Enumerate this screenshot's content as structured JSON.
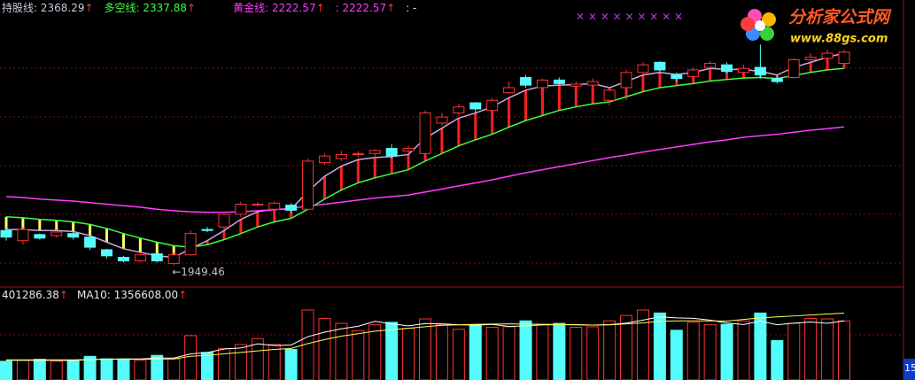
{
  "chart_data": {
    "type": "candlestick",
    "legend": [
      {
        "text": "持股线: 2368.29",
        "arrow": "↑",
        "color": "#c8c8d8"
      },
      {
        "text": "多空线: 2337.88",
        "arrow": "↑",
        "color": "#3cff3c"
      },
      {
        "text": "黄金线: 2222.57",
        "arrow": "↑",
        "color": "#ff3cff"
      },
      {
        "text": ": 2222.57",
        "arrow": "↑",
        "color": "#ff3cff"
      },
      {
        "text": ": -",
        "color": "#e0e0e0"
      }
    ],
    "top_markers": "×  ×  ×  ×  ×  ×  ×  ×  ×",
    "low_label": "←1949.46",
    "ylim": [
      1910,
      2473
    ],
    "open": [
      2018,
      1998,
      2010,
      2008,
      2012,
      2005,
      1980,
      1965,
      1958,
      1972,
      1953,
      1970,
      2020,
      2025,
      2050,
      2068,
      2060,
      2068,
      2060,
      2152,
      2160,
      2168,
      2170,
      2180,
      2175,
      2170,
      2230,
      2250,
      2270,
      2255,
      2290,
      2320,
      2300,
      2315,
      2303,
      2305,
      2275,
      2300,
      2330,
      2350,
      2325,
      2322,
      2340,
      2345,
      2330,
      2340,
      2318,
      2320,
      2355,
      2358,
      2348
    ],
    "high": [
      2025,
      2025,
      2012,
      2020,
      2016,
      2008,
      1982,
      1968,
      1972,
      1975,
      1975,
      2018,
      2025,
      2052,
      2075,
      2074,
      2075,
      2072,
      2160,
      2170,
      2175,
      2175,
      2178,
      2188,
      2185,
      2255,
      2250,
      2268,
      2272,
      2280,
      2312,
      2325,
      2318,
      2320,
      2312,
      2318,
      2300,
      2335,
      2350,
      2352,
      2330,
      2340,
      2352,
      2350,
      2345,
      2385,
      2325,
      2358,
      2368,
      2375,
      2375
    ],
    "low": [
      1998,
      1990,
      2000,
      2004,
      2000,
      1980,
      1963,
      1955,
      1955,
      1955,
      1949.46,
      1968,
      2015,
      2020,
      2045,
      2065,
      2058,
      2052,
      2058,
      2148,
      2155,
      2162,
      2158,
      2160,
      2168,
      2168,
      2225,
      2245,
      2250,
      2250,
      2288,
      2300,
      2296,
      2305,
      2300,
      2300,
      2265,
      2275,
      2325,
      2330,
      2312,
      2318,
      2335,
      2328,
      2325,
      2318,
      2308,
      2318,
      2350,
      2352,
      2345
    ],
    "close": [
      2005,
      2020,
      2003,
      2015,
      2005,
      1985,
      1968,
      1958,
      1970,
      1958,
      1970,
      2012,
      2018,
      2050,
      2070,
      2070,
      2072,
      2058,
      2155,
      2165,
      2168,
      2170,
      2176,
      2165,
      2180,
      2250,
      2242,
      2262,
      2258,
      2275,
      2300,
      2305,
      2315,
      2308,
      2307,
      2312,
      2295,
      2330,
      2345,
      2335,
      2318,
      2335,
      2348,
      2332,
      2338,
      2325,
      2312,
      2355,
      2360,
      2368,
      2370
    ],
    "up_color": "#ff3232",
    "down_color": "#54fcfc",
    "lines": [
      {
        "color": "#c8a8e0",
        "values": [
          2020,
          2020,
          2018,
          2018,
          2016,
          2008,
          1995,
          1982,
          1975,
          1968,
          1965,
          1982,
          1998,
          2018,
          2040,
          2055,
          2060,
          2060,
          2095,
          2125,
          2145,
          2158,
          2162,
          2164,
          2168,
          2200,
          2220,
          2240,
          2250,
          2262,
          2280,
          2295,
          2303,
          2305,
          2306,
          2308,
          2300,
          2312,
          2325,
          2330,
          2326,
          2330,
          2338,
          2336,
          2336,
          2332,
          2325,
          2340,
          2350,
          2360,
          2368.29
        ]
      },
      {
        "color": "#3cff3c",
        "values": [
          2045,
          2043,
          2040,
          2038,
          2035,
          2030,
          2022,
          2012,
          2003,
          1995,
          1988,
          1985,
          1990,
          2000,
          2012,
          2025,
          2035,
          2042,
          2060,
          2080,
          2098,
          2112,
          2122,
          2130,
          2138,
          2155,
          2170,
          2185,
          2197,
          2208,
          2222,
          2235,
          2245,
          2255,
          2262,
          2268,
          2272,
          2282,
          2292,
          2300,
          2304,
          2308,
          2313,
          2316,
          2319,
          2320,
          2318,
          2324,
          2330,
          2335,
          2337.88
        ]
      },
      {
        "color": "#ff3cff",
        "values": [
          2085,
          2083,
          2080,
          2078,
          2076,
          2073,
          2070,
          2067,
          2064,
          2060,
          2057,
          2055,
          2054,
          2054,
          2055,
          2057,
          2059,
          2062,
          2066,
          2070,
          2074,
          2078,
          2082,
          2085,
          2088,
          2094,
          2100,
          2106,
          2112,
          2118,
          2125,
          2132,
          2138,
          2144,
          2150,
          2156,
          2162,
          2167,
          2173,
          2178,
          2183,
          2188,
          2193,
          2197,
          2202,
          2205,
          2208,
          2212,
          2216,
          2219,
          2222.57
        ]
      }
    ],
    "stick_up_color": "#ff1e1e",
    "stick_down_color": "#ffff64",
    "volume": {
      "labels": [
        {
          "text": "401286.38",
          "arrow": "↑"
        },
        {
          "text": "MA10: 1356608.00",
          "arrow": "↑"
        }
      ],
      "ylim": [
        0,
        1600000
      ],
      "values": [
        380000,
        400000,
        420000,
        380000,
        400000,
        480000,
        430000,
        420000,
        400000,
        500000,
        430000,
        900000,
        560000,
        640000,
        720000,
        840000,
        720000,
        620000,
        1420000,
        1250000,
        1150000,
        1000000,
        1120000,
        1170000,
        1050000,
        1240000,
        1120000,
        1030000,
        1120000,
        1070000,
        1080000,
        1200000,
        1120000,
        1150000,
        1070000,
        1080000,
        1200000,
        1310000,
        1420000,
        1360000,
        1010000,
        1170000,
        1120000,
        1130000,
        1200000,
        1360000,
        800000,
        1150000,
        1250000,
        1240000,
        1200000
      ],
      "ma": [
        {
          "color": "#ffffff",
          "values": [
            400000,
            400000,
            400000,
            400000,
            396000,
            416000,
            422000,
            430000,
            426000,
            446000,
            446000,
            530000,
            558000,
            630000,
            650000,
            735000,
            700000,
            710000,
            880000,
            970000,
            1040000,
            1090000,
            1190000,
            1140000,
            1100000,
            1146000,
            1140000,
            1122000,
            1112000,
            1128000,
            1088000,
            1098000,
            1118000,
            1124000,
            1124000,
            1114000,
            1124000,
            1156000,
            1216000,
            1284000,
            1260000,
            1252000,
            1216000,
            1158000,
            1126000,
            1196000,
            1122000,
            1152000,
            1178000,
            1150000,
            1201000
          ]
        },
        {
          "color": "#ffff50",
          "values": [
            410000,
            410000,
            410000,
            410000,
            410000,
            415000,
            420000,
            420000,
            420000,
            425000,
            428000,
            480000,
            500000,
            530000,
            560000,
            590000,
            620000,
            640000,
            740000,
            820000,
            890000,
            940000,
            990000,
            1020000,
            1050000,
            1080000,
            1110000,
            1120000,
            1130000,
            1135000,
            1140000,
            1135000,
            1130000,
            1125000,
            1118000,
            1115000,
            1120000,
            1140000,
            1160000,
            1190000,
            1200000,
            1200000,
            1200000,
            1195000,
            1230000,
            1260000,
            1280000,
            1300000,
            1320000,
            1340000,
            1356608
          ]
        }
      ]
    },
    "logo": {
      "title": "分析家公式网",
      "url": "www.88gs.com"
    },
    "axis_corner": "15"
  }
}
